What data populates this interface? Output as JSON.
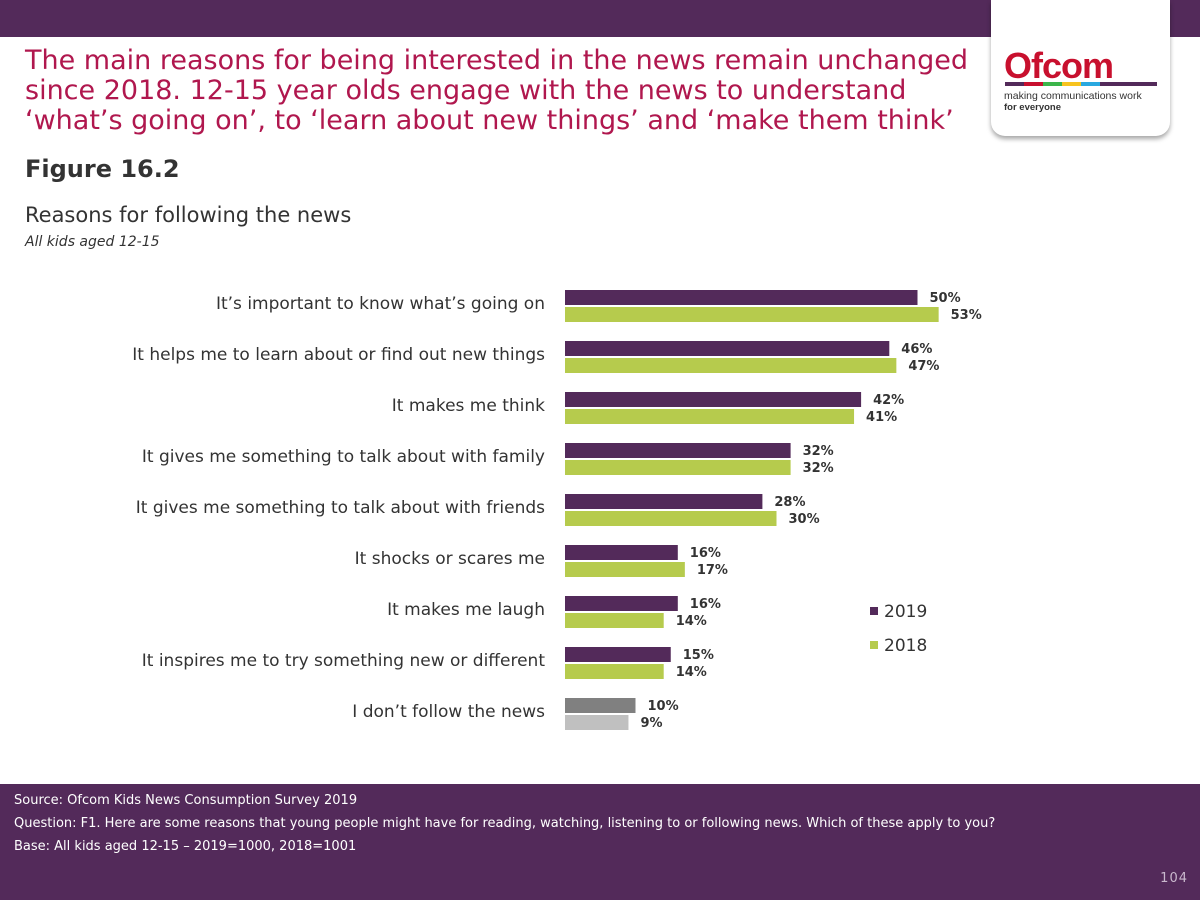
{
  "header": {
    "headline": "The main reasons for being interested in the news remain unchanged since 2018. 12-15 year olds engage with the news to understand ‘what’s going on’, to ‘learn about new things’ and ‘make them think’",
    "figure_label": "Figure 16.2"
  },
  "logo": {
    "wordmark": "Ofcom",
    "tagline_1": "making communications work",
    "tagline_2": "for everyone",
    "stripe_colors": [
      "#532a5a",
      "#c8102e",
      "#3bb54a",
      "#f7c31e",
      "#29a8e0",
      "#532a5a",
      "#532a5a",
      "#532a5a"
    ]
  },
  "colors": {
    "bar_2019": "#532a5a",
    "bar_2018": "#b6cb4d",
    "bar_no_follow_2019": "#808080",
    "bar_no_follow_2018": "#c0c0c0",
    "headline": "#b0174e",
    "brand_bar": "#532a5a"
  },
  "chart_data": {
    "type": "bar",
    "orientation": "horizontal",
    "title": "Reasons for following the news",
    "subtitle": "All kids aged 12-15",
    "categories": [
      "It’s important to know what’s going on",
      "It helps me to learn about or find out new things",
      "It makes me think",
      "It gives me something to talk about with family",
      "It gives me something to talk about with friends",
      "It shocks or scares me",
      "It makes me laugh",
      "It inspires me to try something new or different",
      "I don’t follow the news"
    ],
    "series": [
      {
        "name": "2019",
        "values": [
          50,
          46,
          42,
          32,
          28,
          16,
          16,
          15,
          10
        ]
      },
      {
        "name": "2018",
        "values": [
          53,
          47,
          41,
          32,
          30,
          17,
          14,
          14,
          9
        ]
      }
    ],
    "data_labels": [
      [
        "50%",
        "46%",
        "42%",
        "32%",
        "28%",
        "16%",
        "16%",
        "15%",
        "10%"
      ],
      [
        "53%",
        "47%",
        "41%",
        "32%",
        "30%",
        "17%",
        "14%",
        "14%",
        "9%"
      ]
    ],
    "value_unit": "%",
    "xlim": [
      0,
      100
    ],
    "grid": false,
    "legend_position": "right"
  },
  "footer": {
    "source": "Source: Ofcom Kids News Consumption Survey 2019",
    "question": "Question: F1. Here are some reasons that young people might have for reading, watching, listening to or following news. Which of these apply to you?",
    "base": "Base: All kids aged 12-15 – 2019=1000, 2018=1001",
    "page_number": "104"
  }
}
